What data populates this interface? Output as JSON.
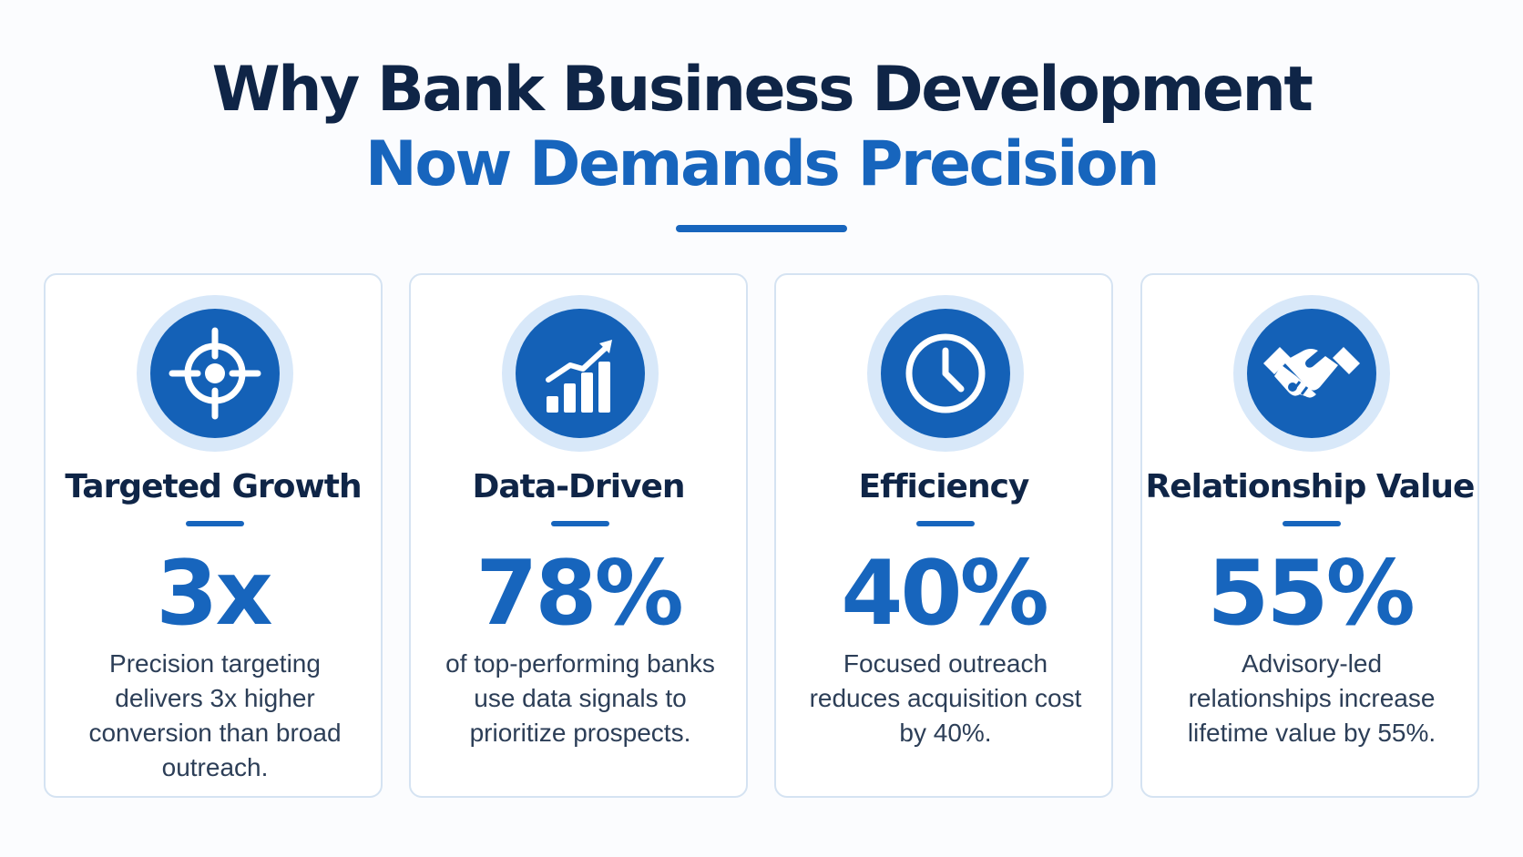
{
  "header": {
    "title_line1": "Why Bank Business Development",
    "title_line2": "Now Demands Precision"
  },
  "colors": {
    "navy": "#0f2547",
    "accent_blue": "#1765bd",
    "icon_disc": "#1461b7",
    "icon_halo": "#d8e8f9",
    "card_border": "#d5e3f2"
  },
  "cards": [
    {
      "icon": "target-icon",
      "heading": "Targeted Growth",
      "stat": "3x",
      "description": "Precision targeting delivers 3x higher conversion than broad outreach."
    },
    {
      "icon": "growth-chart-icon",
      "heading": "Data-Driven",
      "stat": "78%",
      "description": "of top-performing banks use data signals to prioritize prospects."
    },
    {
      "icon": "clock-icon",
      "heading": "Efficiency",
      "stat": "40%",
      "description": "Focused outreach reduces acquisition cost by 40%."
    },
    {
      "icon": "handshake-icon",
      "heading": "Relationship Value",
      "stat": "55%",
      "description": "Advisory-led relationships increase lifetime value by 55%."
    }
  ]
}
